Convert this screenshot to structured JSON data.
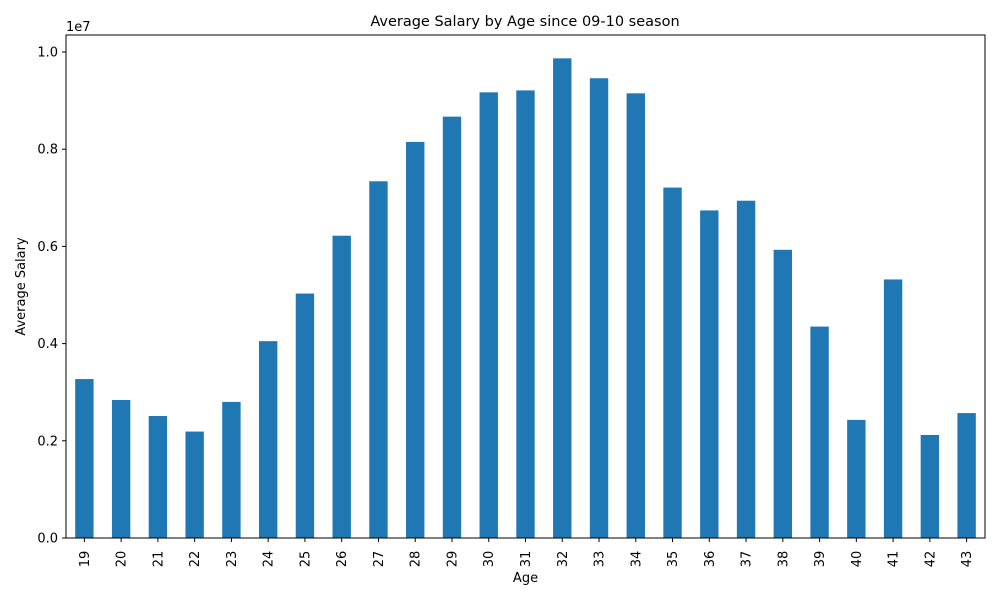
{
  "chart_data": {
    "type": "bar",
    "title": "Average Salary by Age since 09-10 season",
    "xlabel": "Age",
    "ylabel": "Average Salary",
    "y_offset_label": "1e7",
    "y_tick_scale": 10000000,
    "ylim": [
      0,
      10350000
    ],
    "yticks": [
      0,
      2000000,
      4000000,
      6000000,
      8000000,
      10000000
    ],
    "ytick_labels": [
      "0.0",
      "0.2",
      "0.4",
      "0.6",
      "0.8",
      "1.0"
    ],
    "grid": false,
    "legend": "none",
    "bar_color": "#1f77b4",
    "categories": [
      "19",
      "20",
      "21",
      "22",
      "23",
      "24",
      "25",
      "26",
      "27",
      "28",
      "29",
      "30",
      "31",
      "32",
      "33",
      "34",
      "35",
      "36",
      "37",
      "38",
      "39",
      "40",
      "41",
      "42",
      "43"
    ],
    "values": [
      3270000,
      2840000,
      2510000,
      2190000,
      2800000,
      4050000,
      5030000,
      6220000,
      7340000,
      8150000,
      8670000,
      9170000,
      9210000,
      9870000,
      9460000,
      9150000,
      7210000,
      6740000,
      6940000,
      5930000,
      4350000,
      2430000,
      5320000,
      2120000,
      2570000
    ]
  }
}
